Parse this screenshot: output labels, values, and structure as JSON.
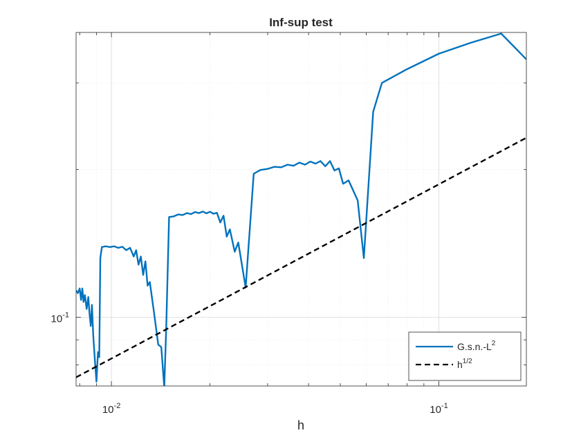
{
  "chart_data": {
    "type": "line",
    "title": "Inf-sup test",
    "xlabel": "h",
    "ylabel": "",
    "xscale": "log",
    "yscale": "log",
    "xlim": [
      0.0078,
      0.185
    ],
    "ylim": [
      0.0725,
      0.38
    ],
    "x_ticks": [
      {
        "value": 0.01,
        "base": "10",
        "exp": "-2"
      },
      {
        "value": 0.1,
        "base": "10",
        "exp": "-1"
      }
    ],
    "y_ticks": [
      {
        "value": 0.1,
        "base": "10",
        "exp": "-1"
      }
    ],
    "grid": true,
    "legend": "bottom-right",
    "series": [
      {
        "name": "G.s.n.-L",
        "name_sup": "2",
        "color": "#0072BD",
        "style": "solid",
        "points": [
          [
            0.0078,
            0.1135
          ],
          [
            0.0079,
            0.112
          ],
          [
            0.008,
            0.1145
          ],
          [
            0.00808,
            0.1085
          ],
          [
            0.00815,
            0.1145
          ],
          [
            0.00822,
            0.1075
          ],
          [
            0.0083,
            0.111
          ],
          [
            0.0084,
            0.104
          ],
          [
            0.0085,
            0.11
          ],
          [
            0.00857,
            0.102
          ],
          [
            0.00865,
            0.096
          ],
          [
            0.00872,
            0.106
          ],
          [
            0.0088,
            0.092
          ],
          [
            0.0089,
            0.082
          ],
          [
            0.009,
            0.074
          ],
          [
            0.0091,
            0.085
          ],
          [
            0.00918,
            0.083
          ],
          [
            0.00925,
            0.132
          ],
          [
            0.00935,
            0.139
          ],
          [
            0.0096,
            0.1395
          ],
          [
            0.0099,
            0.139
          ],
          [
            0.0102,
            0.1395
          ],
          [
            0.0105,
            0.1385
          ],
          [
            0.0108,
            0.1392
          ],
          [
            0.0111,
            0.137
          ],
          [
            0.0114,
            0.1385
          ],
          [
            0.0117,
            0.133
          ],
          [
            0.0119,
            0.137
          ],
          [
            0.0121,
            0.128
          ],
          [
            0.0123,
            0.133
          ],
          [
            0.0125,
            0.122
          ],
          [
            0.0127,
            0.13
          ],
          [
            0.0129,
            0.116
          ],
          [
            0.0131,
            0.118
          ],
          [
            0.0135,
            0.102
          ],
          [
            0.0139,
            0.088
          ],
          [
            0.0142,
            0.087
          ],
          [
            0.0145,
            0.072
          ],
          [
            0.0147,
            0.095
          ],
          [
            0.015,
            0.16
          ],
          [
            0.0155,
            0.1605
          ],
          [
            0.016,
            0.162
          ],
          [
            0.0165,
            0.1615
          ],
          [
            0.017,
            0.163
          ],
          [
            0.0175,
            0.1622
          ],
          [
            0.018,
            0.1638
          ],
          [
            0.0185,
            0.163
          ],
          [
            0.019,
            0.1642
          ],
          [
            0.0195,
            0.1628
          ],
          [
            0.02,
            0.164
          ],
          [
            0.0205,
            0.1625
          ],
          [
            0.021,
            0.1632
          ],
          [
            0.0215,
            0.156
          ],
          [
            0.022,
            0.161
          ],
          [
            0.0225,
            0.146
          ],
          [
            0.023,
            0.151
          ],
          [
            0.0238,
            0.136
          ],
          [
            0.0244,
            0.142
          ],
          [
            0.0257,
            0.115
          ],
          [
            0.0272,
            0.196
          ],
          [
            0.0285,
            0.1995
          ],
          [
            0.03,
            0.2005
          ],
          [
            0.0315,
            0.2025
          ],
          [
            0.033,
            0.202
          ],
          [
            0.0345,
            0.2045
          ],
          [
            0.036,
            0.2035
          ],
          [
            0.0375,
            0.2065
          ],
          [
            0.039,
            0.2045
          ],
          [
            0.0405,
            0.2075
          ],
          [
            0.042,
            0.2055
          ],
          [
            0.0435,
            0.208
          ],
          [
            0.045,
            0.203
          ],
          [
            0.0465,
            0.208
          ],
          [
            0.048,
            0.199
          ],
          [
            0.0495,
            0.201
          ],
          [
            0.051,
            0.187
          ],
          [
            0.053,
            0.19
          ],
          [
            0.0565,
            0.173
          ],
          [
            0.059,
            0.132
          ],
          [
            0.063,
            0.262
          ],
          [
            0.067,
            0.3
          ],
          [
            0.08,
            0.32
          ],
          [
            0.1,
            0.344
          ],
          [
            0.125,
            0.362
          ],
          [
            0.155,
            0.378
          ],
          [
            0.185,
            0.335
          ]
        ]
      },
      {
        "name": "h",
        "name_sup": "1/2",
        "color": "#000000",
        "style": "dashed",
        "points": [
          [
            0.0078,
            0.0755
          ],
          [
            0.185,
            0.232
          ]
        ]
      }
    ]
  }
}
